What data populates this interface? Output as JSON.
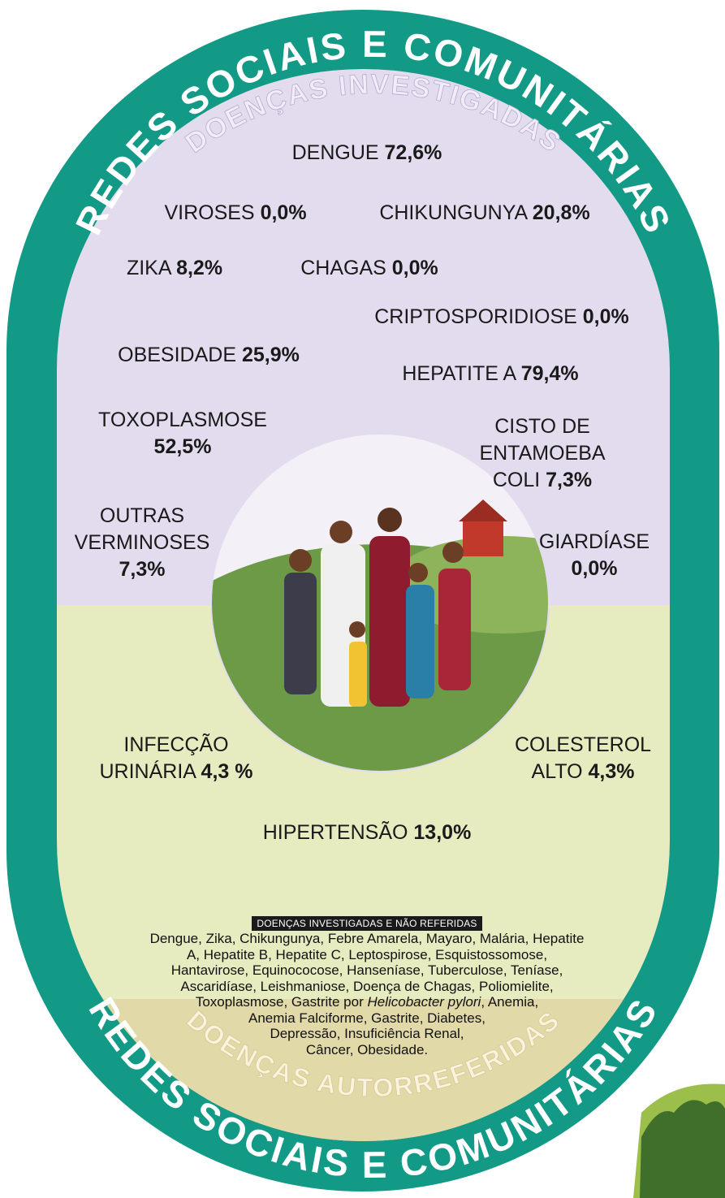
{
  "header": {
    "outer_arc": "REDES SOCIAIS E COMUNITÁRIAS",
    "inner_arc": "DOENÇAS INVESTIGADAS"
  },
  "items": [
    {
      "label": "DENGUE",
      "value": "72,6%"
    },
    {
      "label": "VIROSES",
      "value": "0,0%"
    },
    {
      "label": "CHIKUNGUNYA",
      "value": "20,8%"
    },
    {
      "label": "ZIKA",
      "value": "8,2%"
    },
    {
      "label": "CHAGAS",
      "value": "0,0%"
    },
    {
      "label": "CRIPTOSPORIDIOSE",
      "value": "0,0%"
    },
    {
      "label": "OBESIDADE",
      "value": "25,9%"
    },
    {
      "label": "HEPATITE A",
      "value": "79,4%"
    },
    {
      "label": "TOXOPLASMOSE",
      "value": "52,5%"
    },
    {
      "label": "CISTO DE ENTAMOEBA COLI",
      "value": "7,3%"
    },
    {
      "label": "OUTRAS VERMINOSES",
      "value": "7,3%"
    },
    {
      "label": "GIARDÍASE",
      "value": "0,0%"
    },
    {
      "label": "INFECÇÃO URINÁRIA",
      "value": "4,3 %"
    },
    {
      "label": "COLESTEROL ALTO",
      "value": "4,3%"
    },
    {
      "label": "HIPERTENSÃO",
      "value": "13,0%"
    }
  ],
  "note": {
    "title": "DOENÇAS INVESTIGADAS E NÃO REFERIDAS",
    "lines": [
      "Dengue, Zika, Chikungunya, Febre Amarela, Mayaro, Malária, Hepatite",
      "A, Hepatite B, Hepatite C, Leptospirose, Esquistossomose,",
      "Hantavirose, Equinococose, Hanseníase, Tuberculose, Teníase,",
      "Ascaridíase, Leishmaniose, Doença de Chagas, Poliomielite,",
      {
        "before": "Toxoplasmose, Gastrite por ",
        "italic": "Helicobacter pylori",
        "after": ", Anemia,"
      },
      "Anemia Falciforme, Gastrite, Diabetes,",
      "Depressão, Insuficiência Renal,",
      "Câncer, Obesidade."
    ]
  },
  "footer": {
    "inner_arc": "DOENÇAS AUTORREFERIDAS",
    "outer_arc": "REDES SOCIAIS E COMUNITÁRIAS"
  }
}
